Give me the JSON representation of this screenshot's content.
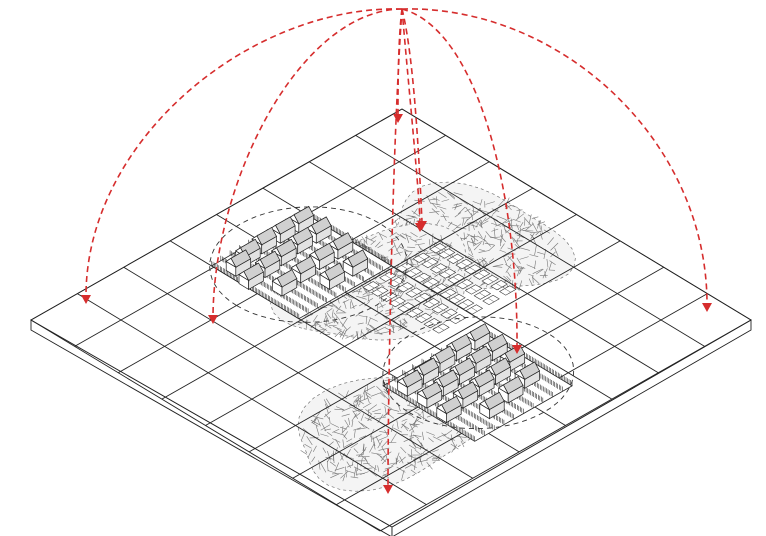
{
  "diagram": {
    "grid": {
      "rows": 8,
      "cols": 8
    },
    "zones": {
      "clusters": [
        {
          "name": "cluster-left",
          "cells": [
            [
              3,
              0
            ],
            [
              3,
              1
            ],
            [
              4,
              0
            ],
            [
              4,
              1
            ]
          ],
          "building_count": 16
        },
        {
          "name": "cluster-right",
          "cells": [
            [
              6,
              3
            ],
            [
              6,
              4
            ],
            [
              7,
              3
            ],
            [
              7,
              4
            ]
          ],
          "building_count": 18
        }
      ],
      "open_spaces": [
        {
          "name": "open-space-north",
          "kind": "hatched",
          "cells": [
            [
              1,
              3
            ],
            [
              1,
              4
            ],
            [
              2,
              3
            ],
            [
              2,
              4
            ]
          ]
        },
        {
          "name": "open-space-south",
          "kind": "hatched",
          "cells": [
            [
              5,
              7
            ],
            [
              6,
              7
            ],
            [
              5,
              6
            ]
          ]
        },
        {
          "name": "open-space-center",
          "kind": "hatched",
          "cells": [
            [
              3,
              2
            ],
            [
              4,
              2
            ],
            [
              3,
              3
            ],
            [
              4,
              3
            ],
            [
              5,
              4
            ],
            [
              4,
              5
            ],
            [
              3,
              5
            ],
            [
              2,
              5
            ]
          ]
        }
      ],
      "parking": {
        "name": "parking-area",
        "cells": [
          [
            2,
            2
          ],
          [
            3,
            2
          ]
        ]
      }
    },
    "arrows": {
      "color": "#d62d2d",
      "style": "dashed",
      "count": 8,
      "targets": [
        "far-left-corner",
        "cluster-left",
        "grid-top",
        "parking-area",
        "cluster-right",
        "far-right-corner",
        "grid-bottom",
        "grid-center-north"
      ]
    },
    "colors": {
      "linework": "#222222",
      "ground": "#ffffff",
      "arrow": "#d62d2d",
      "hatch": "#777777"
    }
  }
}
